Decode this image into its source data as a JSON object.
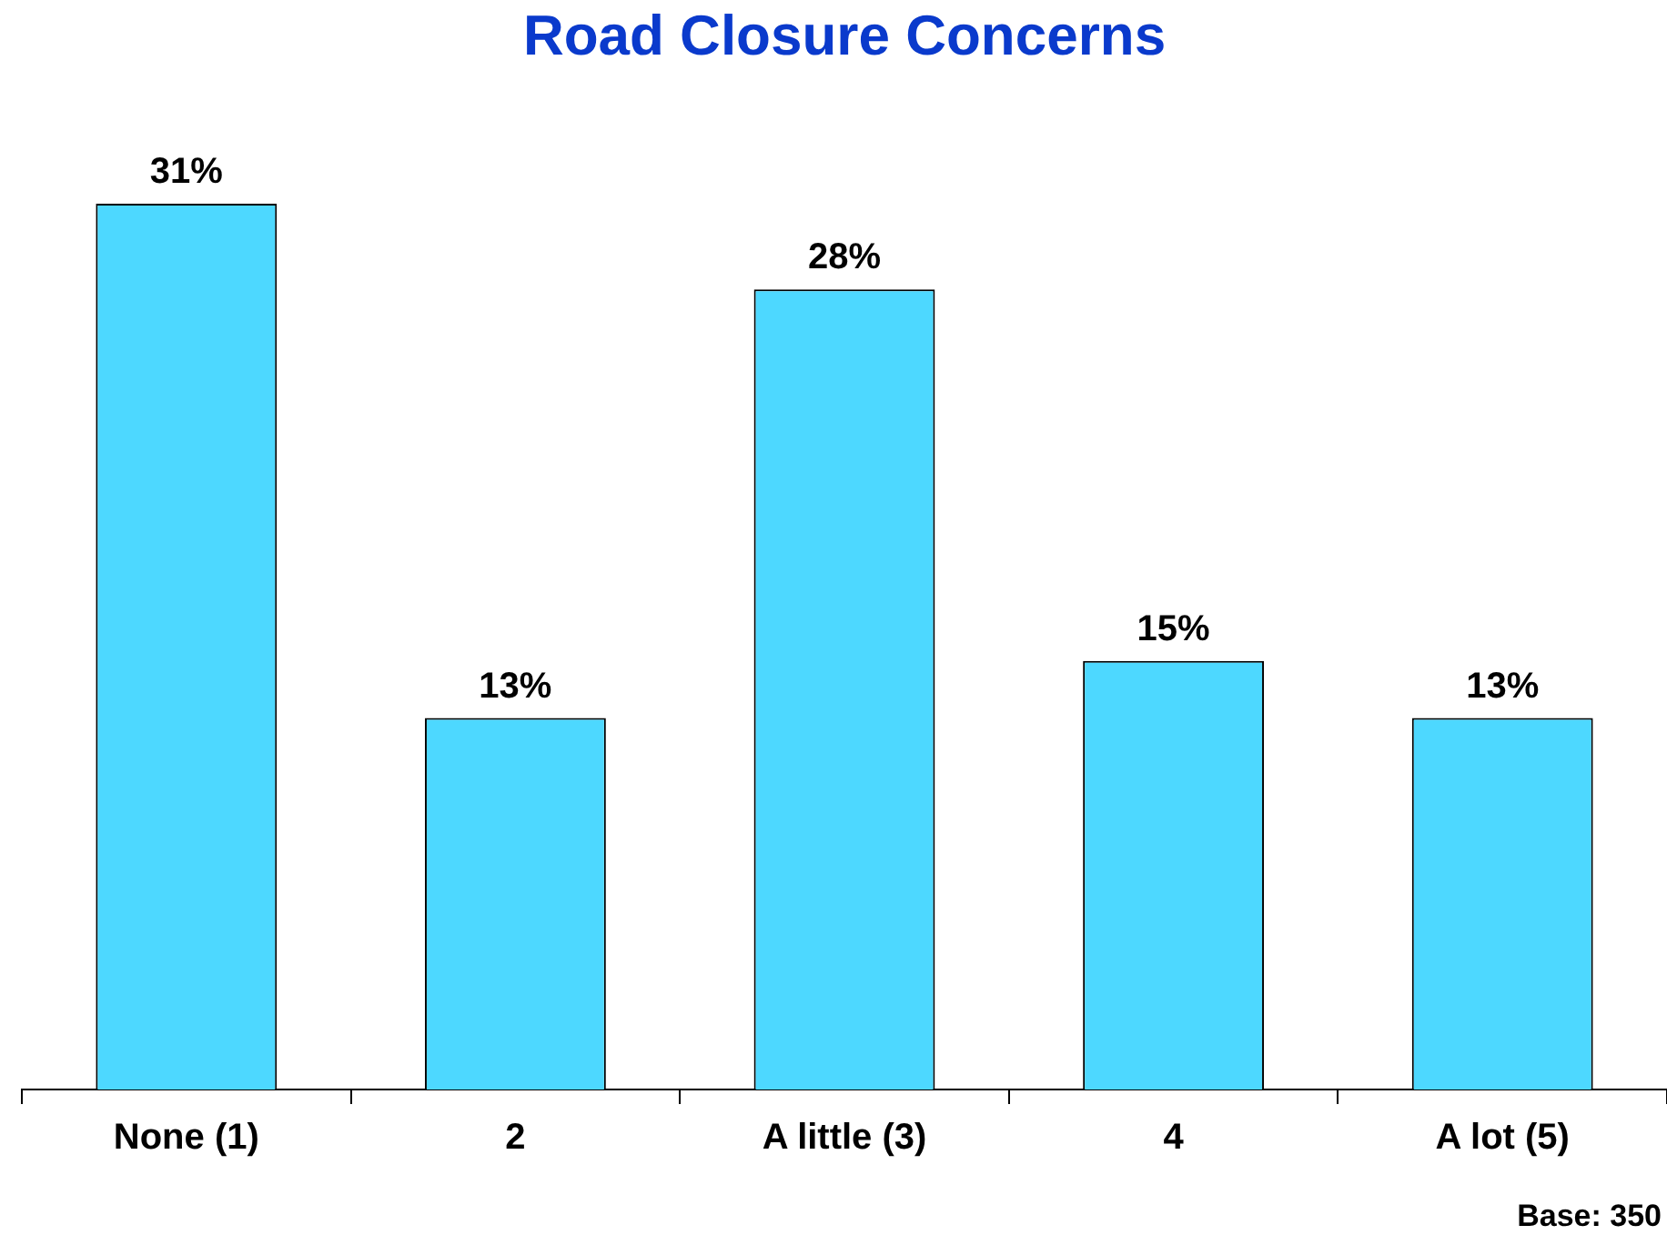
{
  "chart_data": {
    "type": "bar",
    "title": "Road Closure Concerns",
    "categories": [
      "None (1)",
      "2",
      "A little (3)",
      "4",
      "A lot (5)"
    ],
    "values": [
      31,
      13,
      28,
      15,
      13
    ],
    "value_labels": [
      "31%",
      "13%",
      "28%",
      "15%",
      "13%"
    ],
    "color": "#4dd8ff",
    "annotations": [
      "Base: 350"
    ]
  }
}
